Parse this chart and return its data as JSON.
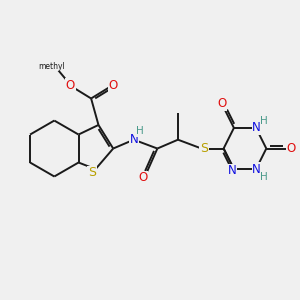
{
  "bg_color": "#f0f0f0",
  "bond_color": "#1a1a1a",
  "bond_width": 1.4,
  "atom_colors": {
    "C": "#1a1a1a",
    "H": "#4a9a8a",
    "N": "#1010e0",
    "O": "#e01010",
    "S": "#b8a000"
  },
  "fs": 8.5,
  "fss": 7.0
}
